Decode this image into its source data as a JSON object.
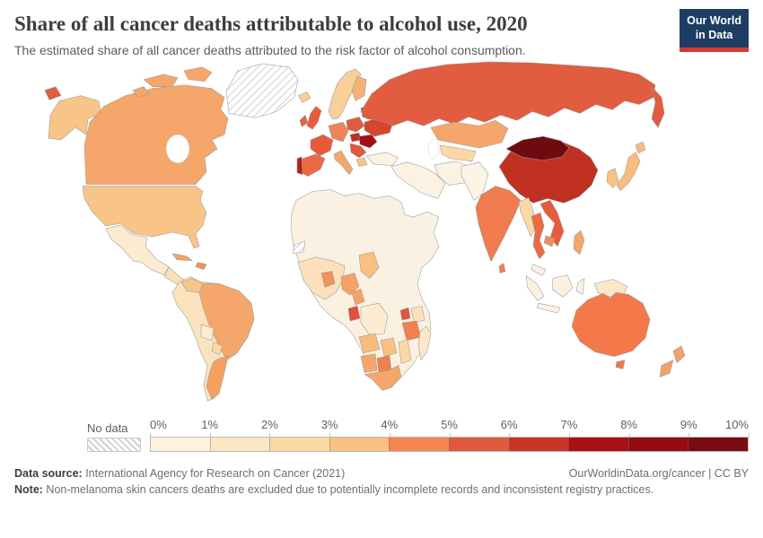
{
  "header": {
    "title": "Share of all cancer deaths attributable to alcohol use, 2020",
    "subtitle": "The estimated share of all cancer deaths attributed to the risk factor of alcohol consumption.",
    "logo": {
      "line1": "Our World",
      "line2": "in Data",
      "bg_color": "#1d3d63",
      "accent_color": "#d7382e"
    }
  },
  "chart_data": {
    "type": "choropleth_map",
    "title": "Share of all cancer deaths attributable to alcohol use, 2020",
    "year": "2020",
    "unit": "%",
    "legend": {
      "no_data_label": "No data",
      "tick_labels": [
        "0%",
        "1%",
        "2%",
        "3%",
        "4%",
        "5%",
        "6%",
        "7%",
        "8%",
        "9%",
        "10%"
      ],
      "bin_colors": [
        "#fdf2e0",
        "#fce7c4",
        "#fbd8a2",
        "#f9c080",
        "#f5854f",
        "#e0593c",
        "#c93226",
        "#ab0e13",
        "#930b11",
        "#7a0b11"
      ]
    },
    "regions": {
      "greenland": {
        "label": "Greenland",
        "share": "No data",
        "color": "nodata"
      },
      "western-sahara": {
        "label": "Western Sahara",
        "share": "No data",
        "color": "nodata"
      },
      "alaska": {
        "label": "Alaska (United States)",
        "share": "2-3%",
        "color": "#f9c488"
      },
      "canada": {
        "label": "Canada",
        "share": "3-4%",
        "color": "#f5a76b"
      },
      "canadian-arctic": {
        "label": "Canadian Arctic",
        "share": "3-4%",
        "color": "#f5a76b"
      },
      "usa": {
        "label": "United States",
        "share": "2-3%",
        "color": "#f9c488"
      },
      "mexico": {
        "label": "Mexico",
        "share": "1-2%",
        "color": "#fcebd1"
      },
      "central-america": {
        "label": "Central America",
        "share": "1-2%",
        "color": "#fbe0ba"
      },
      "cuba": {
        "label": "Cuba",
        "share": "3-4%",
        "color": "#f3a066"
      },
      "hispaniola": {
        "label": "Hispaniola",
        "share": "3-4%",
        "color": "#f0925a"
      },
      "colombia-andes": {
        "label": "Colombia, Peru & Chile",
        "share": "1-2%",
        "color": "#fbe3c0"
      },
      "venezuela": {
        "label": "Venezuela",
        "share": "2-3%",
        "color": "#f9c488"
      },
      "bolivia": {
        "label": "Bolivia",
        "share": "1-2%",
        "color": "#fcecd2"
      },
      "brazil": {
        "label": "Brazil",
        "share": "3-4%",
        "color": "#f5a76b"
      },
      "paraguay": {
        "label": "Paraguay",
        "share": "2-3%",
        "color": "#fbd9a6"
      },
      "argentina": {
        "label": "Argentina",
        "share": "3-4%",
        "color": "#f5a061"
      },
      "iceland": {
        "label": "Iceland",
        "share": "2-3%",
        "color": "#f8cf9a"
      },
      "uk": {
        "label": "United Kingdom",
        "share": "5-6%",
        "color": "#e85c3c"
      },
      "ireland": {
        "label": "Ireland",
        "share": "5-6%",
        "color": "#e8643f"
      },
      "norway-sweden": {
        "label": "Norway & Sweden",
        "share": "2-3%",
        "color": "#f8cf9a"
      },
      "finland": {
        "label": "Finland",
        "share": "3-4%",
        "color": "#f5b275"
      },
      "france": {
        "label": "France",
        "share": "5-6%",
        "color": "#e65a3a"
      },
      "spain": {
        "label": "Spain",
        "share": "5-6%",
        "color": "#ea6844"
      },
      "portugal": {
        "label": "Portugal",
        "share": "7-8%",
        "color": "#b51c1c"
      },
      "germany-central": {
        "label": "Germany & Central Europe",
        "share": "4-5%",
        "color": "#ee835c"
      },
      "italy": {
        "label": "Italy",
        "share": "3-4%",
        "color": "#f5a76b"
      },
      "poland": {
        "label": "Poland",
        "share": "5-6%",
        "color": "#e05a3e"
      },
      "baltics-belarus": {
        "label": "Baltics & Belarus",
        "share": "6-7%",
        "color": "#c93226"
      },
      "ukraine": {
        "label": "Ukraine",
        "share": "6-7%",
        "color": "#d5452f"
      },
      "romania": {
        "label": "Romania & Moldova",
        "share": "8-9%",
        "color": "#a50f14"
      },
      "hungary": {
        "label": "Hungary",
        "share": "6-7%",
        "color": "#c22d20"
      },
      "balkans": {
        "label": "Balkans",
        "share": "5-6%",
        "color": "#e0583a"
      },
      "greece": {
        "label": "Greece",
        "share": "2-3%",
        "color": "#f9c488"
      },
      "turkey": {
        "label": "Turkey",
        "share": "0-1%",
        "color": "#fbf2e4"
      },
      "russia": {
        "label": "Russia",
        "share": "5-6%",
        "color": "#e25c40"
      },
      "kazakhstan": {
        "label": "Kazakhstan",
        "share": "3-4%",
        "color": "#f5a76b"
      },
      "central-asia": {
        "label": "Central Asia",
        "share": "1-2%",
        "color": "#fbd9a6"
      },
      "middle-east": {
        "label": "Middle East",
        "share": "0-1%",
        "color": "#fbf2e4"
      },
      "pakistan-afghanistan": {
        "label": "Pakistan & Afghanistan",
        "share": "0-1%",
        "color": "#fdf4e8"
      },
      "india": {
        "label": "India",
        "share": "4-5%",
        "color": "#f07b4e"
      },
      "sri-lanka": {
        "label": "Sri Lanka",
        "share": "4-5%",
        "color": "#f08050"
      },
      "myanmar": {
        "label": "Myanmar",
        "share": "1-2%",
        "color": "#fbd9a6"
      },
      "thailand": {
        "label": "Thailand",
        "share": "5-6%",
        "color": "#ee6a44"
      },
      "laos-vietnam": {
        "label": "Laos & Vietnam",
        "share": "5-6%",
        "color": "#e45c3c"
      },
      "cambodia": {
        "label": "Cambodia",
        "share": "4-5%",
        "color": "#f28a5a"
      },
      "malaysia": {
        "label": "Malaysia",
        "share": "0-1%",
        "color": "#fbf2e4"
      },
      "indonesia": {
        "label": "Indonesia",
        "share": "0-1%",
        "color": "#faf1e2"
      },
      "new-guinea": {
        "label": "Papua New Guinea",
        "share": "1-2%",
        "color": "#fce7c8"
      },
      "philippines": {
        "label": "Philippines",
        "share": "3-4%",
        "color": "#f5a76b"
      },
      "china": {
        "label": "China",
        "share": "6-7%",
        "color": "#c03122"
      },
      "mongolia": {
        "label": "Mongolia",
        "share": "9-10%",
        "color": "#6f0a10"
      },
      "korea": {
        "label": "South Korea",
        "share": "2-3%",
        "color": "#f9c184"
      },
      "japan": {
        "label": "Japan",
        "share": "2-3%",
        "color": "#f8bc7c"
      },
      "australia": {
        "label": "Australia",
        "share": "4-5%",
        "color": "#f4794a"
      },
      "new-zealand": {
        "label": "New Zealand",
        "share": "3-4%",
        "color": "#f5a067"
      },
      "north-africa": {
        "label": "North Africa & Horn",
        "share": "0-1%",
        "color": "#faf1e2"
      },
      "west-africa": {
        "label": "West Africa",
        "share": "1-2%",
        "color": "#fbe0ba"
      },
      "burkina-ghana": {
        "label": "Burkina Faso & Ghana",
        "share": "3-4%",
        "color": "#f0925e"
      },
      "nigeria": {
        "label": "Nigeria",
        "share": "3-4%",
        "color": "#f6a267"
      },
      "sahel-chad": {
        "label": "Chad",
        "share": "2-3%",
        "color": "#f9c080"
      },
      "cameroon": {
        "label": "Cameroon",
        "share": "3-4%",
        "color": "#f6a267"
      },
      "gabon": {
        "label": "Gabon",
        "share": "5-6%",
        "color": "#e0503a"
      },
      "drc": {
        "label": "DR Congo",
        "share": "1-2%",
        "color": "#fcecd2"
      },
      "uganda": {
        "label": "Uganda",
        "share": "5-6%",
        "color": "#e0563c"
      },
      "kenya": {
        "label": "Kenya",
        "share": "1-2%",
        "color": "#fbe0ba"
      },
      "tanzania": {
        "label": "Tanzania",
        "share": "4-5%",
        "color": "#f08050"
      },
      "angola": {
        "label": "Angola",
        "share": "2-3%",
        "color": "#f8bc7c"
      },
      "zambia-zimbabwe": {
        "label": "Zambia & Zimbabwe",
        "share": "2-3%",
        "color": "#f9c080"
      },
      "mozambique": {
        "label": "Mozambique",
        "share": "1-2%",
        "color": "#fbd9a6"
      },
      "namibia": {
        "label": "Namibia",
        "share": "3-4%",
        "color": "#f5a76b"
      },
      "botswana": {
        "label": "Botswana",
        "share": "4-5%",
        "color": "#f08050"
      },
      "south-africa": {
        "label": "South Africa",
        "share": "3-4%",
        "color": "#f5a76b"
      },
      "madagascar": {
        "label": "Madagascar",
        "share": "1-2%",
        "color": "#fce7c8"
      }
    }
  },
  "footer": {
    "source_label": "Data source:",
    "source_text": " International Agency for Research on Cancer (2021)",
    "link_text": "OurWorldinData.org/cancer | CC BY",
    "note_label": "Note:",
    "note_text": " Non-melanoma skin cancers deaths are excluded due to potentially incomplete records and inconsistent registry practices."
  }
}
